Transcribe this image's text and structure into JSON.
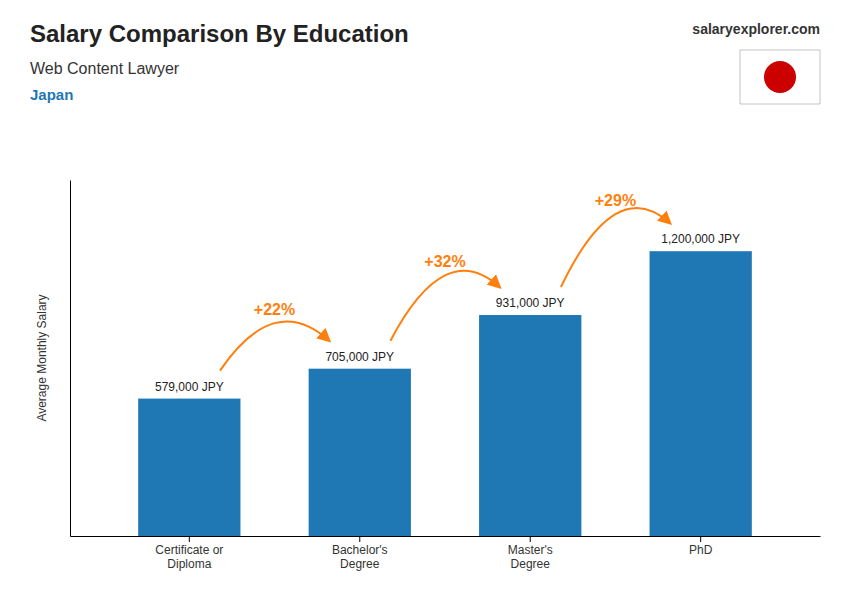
{
  "chart_data": {
    "type": "bar",
    "title": "Salary Comparison By Education",
    "subtitle": "Web Content Lawyer",
    "country": "Japan",
    "source": "salaryexplorer.com",
    "ylabel": "Average Monthly Salary",
    "categories": [
      "Certificate or\nDiploma",
      "Bachelor's\nDegree",
      "Master's\nDegree",
      "PhD"
    ],
    "values": [
      579000,
      705000,
      931000,
      1200000
    ],
    "value_labels": [
      "579,000 JPY",
      "705,000 JPY",
      "931,000 JPY",
      "1,200,000 JPY"
    ],
    "data_labels": true,
    "annotations": [
      "+22%",
      "+32%",
      "+29%"
    ],
    "ylim": [
      0,
      1500000
    ],
    "yticks": [],
    "tick_labels": "x",
    "grid": false
  }
}
